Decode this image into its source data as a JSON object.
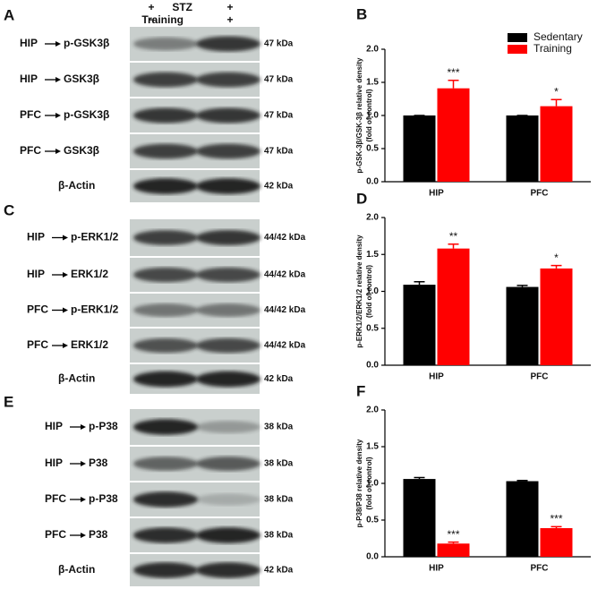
{
  "blot_panels": [
    {
      "panel": "A",
      "treatments": [
        {
          "name": "STZ",
          "lanes": [
            "+",
            "+"
          ]
        },
        {
          "name": "Training",
          "lanes": [
            "−",
            "+"
          ]
        }
      ],
      "rows": [
        {
          "region": "HIP",
          "protein": "p-GSK3β",
          "size": "47 kDa"
        },
        {
          "region": "HIP",
          "protein": "GSK3β",
          "size": "47 kDa"
        },
        {
          "region": "PFC",
          "protein": "p-GSK3β",
          "size": "47 kDa"
        },
        {
          "region": "PFC",
          "protein": "GSK3β",
          "size": "47 kDa"
        },
        {
          "protein": "β-Actin",
          "size": "42 kDa"
        }
      ]
    },
    {
      "panel": "C",
      "rows": [
        {
          "region": "HIP",
          "protein": "p-ERK1/2",
          "size": "44/42 kDa"
        },
        {
          "region": "HIP",
          "protein": "ERK1/2",
          "size": "44/42 kDa"
        },
        {
          "region": "PFC",
          "protein": "p-ERK1/2",
          "size": "44/42 kDa"
        },
        {
          "region": "PFC",
          "protein": "ERK1/2",
          "size": "44/42 kDa"
        },
        {
          "protein": "β-Actin",
          "size": "42 kDa"
        }
      ]
    },
    {
      "panel": "E",
      "rows": [
        {
          "region": "HIP",
          "protein": "p-P38",
          "size": "38 kDa"
        },
        {
          "region": "HIP",
          "protein": "P38",
          "size": "38 kDa"
        },
        {
          "region": "PFC",
          "protein": "p-P38",
          "size": "38 kDa"
        },
        {
          "region": "PFC",
          "protein": "P38",
          "size": "38 kDa"
        },
        {
          "protein": "β-Actin",
          "size": "42 kDa"
        }
      ]
    }
  ],
  "chart_data": [
    {
      "type": "bar",
      "panel": "B",
      "ylabel": [
        "p-GSK-3β/GSK-3β relative density",
        "(fold of control)"
      ],
      "categories": [
        "HIP",
        "PFC"
      ],
      "series": [
        {
          "name": "Sedentary",
          "color": "#000000",
          "values": [
            1.0,
            1.0
          ],
          "errors": [
            0,
            0
          ]
        },
        {
          "name": "Training",
          "color": "#ff0000",
          "values": [
            1.41,
            1.14
          ],
          "errors": [
            0.12,
            0.1
          ],
          "significance": [
            "***",
            "*"
          ]
        }
      ],
      "ylim": [
        0,
        2
      ],
      "yticks": [
        {
          "value": 0,
          "label": "0.0"
        },
        {
          "value": 0.5,
          "label": "0.5"
        },
        {
          "value": 1,
          "label": "1.0"
        },
        {
          "value": 1.5,
          "label": "1.5"
        },
        {
          "value": 2,
          "label": "2.0"
        }
      ],
      "legend": "upper right"
    },
    {
      "type": "bar",
      "panel": "D",
      "ylabel": [
        "p-ERK1/2/ERK1/2 relative density",
        "(fold of control)"
      ],
      "categories": [
        "HIP",
        "PFC"
      ],
      "series": [
        {
          "color": "#000000",
          "values": [
            1.09,
            1.06
          ],
          "errors": [
            0.04,
            0.02
          ]
        },
        {
          "color": "#ff0000",
          "values": [
            1.58,
            1.31
          ],
          "errors": [
            0.06,
            0.04
          ],
          "significance": [
            "**",
            "*"
          ]
        }
      ],
      "ylim": [
        0,
        2
      ],
      "yticks": [
        {
          "value": 0,
          "label": "0.0"
        },
        {
          "value": 0.5,
          "label": "0.5"
        },
        {
          "value": 1,
          "label": "1.0"
        },
        {
          "value": 1.5,
          "label": "1.5"
        },
        {
          "value": 2,
          "label": "2.0"
        }
      ]
    },
    {
      "type": "bar",
      "panel": "F",
      "ylabel": [
        "p-P38/P38 relative density",
        "(fold of control)"
      ],
      "categories": [
        "HIP",
        "PFC"
      ],
      "series": [
        {
          "color": "#000000",
          "values": [
            1.06,
            1.03
          ],
          "errors": [
            0.02,
            0.01
          ]
        },
        {
          "color": "#ff0000",
          "values": [
            0.18,
            0.39
          ],
          "errors": [
            0.02,
            0.02
          ],
          "significance": [
            "***",
            "***"
          ]
        }
      ],
      "ylim": [
        0,
        2
      ],
      "yticks": [
        {
          "value": 0,
          "label": "0.0"
        },
        {
          "value": 0.5,
          "label": "0.5"
        },
        {
          "value": 1,
          "label": "1.0"
        },
        {
          "value": 1.5,
          "label": "1.5"
        },
        {
          "value": 2,
          "label": "2.0"
        }
      ]
    }
  ]
}
